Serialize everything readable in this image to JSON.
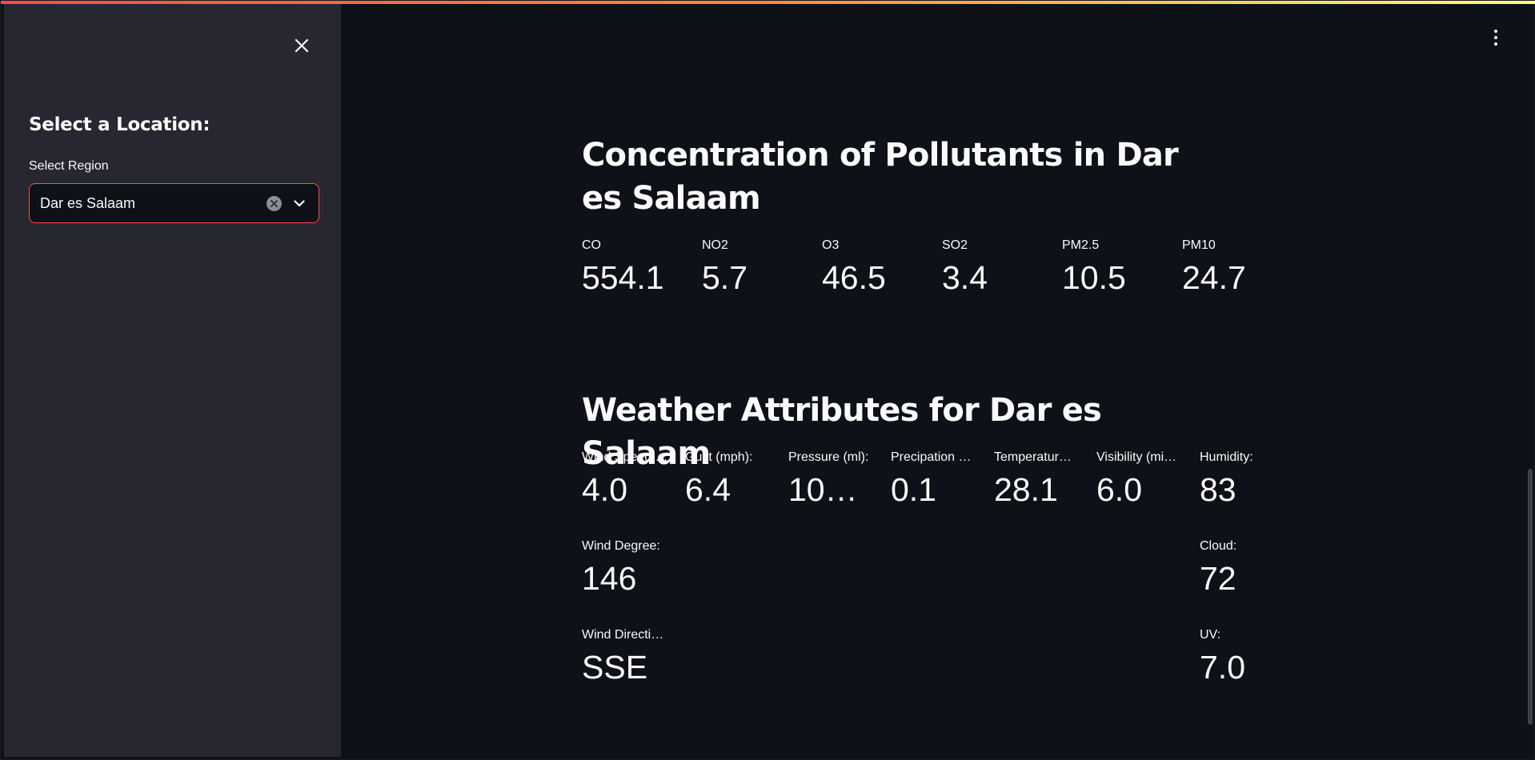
{
  "sidebar": {
    "heading": "Select a Location:",
    "select_label": "Select Region",
    "select_value": "Dar es Salaam"
  },
  "pollutants": {
    "title": "Concentration of Pollutants in Dar es Salaam",
    "metrics": [
      {
        "label": "CO",
        "value": "554.1"
      },
      {
        "label": "NO2",
        "value": "5.7"
      },
      {
        "label": "O3",
        "value": "46.5"
      },
      {
        "label": "SO2",
        "value": "3.4"
      },
      {
        "label": "PM2.5",
        "value": "10.5"
      },
      {
        "label": "PM10",
        "value": "24.7"
      }
    ]
  },
  "weather": {
    "title": "Weather Attributes for Dar es Salaam",
    "metrics": [
      {
        "label": "Wind Speed …",
        "value": "4.0"
      },
      {
        "label": "Gust (mph):",
        "value": "6.4"
      },
      {
        "label": "Pressure (ml):",
        "value": "10…"
      },
      {
        "label": "Precipation …",
        "value": "0.1"
      },
      {
        "label": "Temperatur…",
        "value": "28.1"
      },
      {
        "label": "Visibility (mi…",
        "value": "6.0"
      },
      {
        "label": "Humidity:",
        "value": "83"
      },
      {
        "label": "Wind Degree:",
        "value": "146"
      },
      {
        "label": "Cloud:",
        "value": "72"
      },
      {
        "label": "Wind Directi…",
        "value": "SSE"
      },
      {
        "label": "UV:",
        "value": "7.0"
      }
    ]
  },
  "colors": {
    "accent": "#ff4b4b",
    "sidebar_bg": "#262730",
    "main_bg": "#0e1117"
  }
}
